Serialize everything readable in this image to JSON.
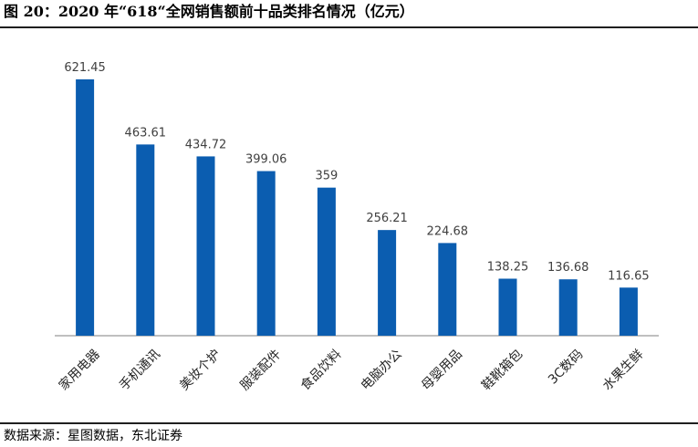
{
  "title": "图 20：2020 年“618“全网销售额前十品类排名情况（亿元）",
  "source": "数据来源：星图数据，东北证券",
  "colors": {
    "bar": "#0b5db0",
    "axis": "#7f7f7f",
    "rule": "#1f1f1f"
  },
  "chart_data": {
    "type": "bar",
    "title": "图 20：2020 年“618“全网销售额前十品类排名情况（亿元）",
    "categories": [
      "家用电器",
      "手机通讯",
      "美妆个护",
      "服装配件",
      "食品饮料",
      "电脑办公",
      "母婴用品",
      "鞋靴箱包",
      "3C数码",
      "水果生鲜"
    ],
    "values": [
      621.45,
      463.61,
      434.72,
      399.06,
      359,
      256.21,
      224.68,
      138.25,
      136.68,
      116.65
    ],
    "value_labels": [
      "621.45",
      "463.61",
      "434.72",
      "399.06",
      "359",
      "256.21",
      "224.68",
      "138.25",
      "136.68",
      "116.65"
    ],
    "xlabel": "",
    "ylabel": "",
    "ylim": [
      0,
      621.45
    ],
    "grid": false,
    "legend": "none"
  }
}
